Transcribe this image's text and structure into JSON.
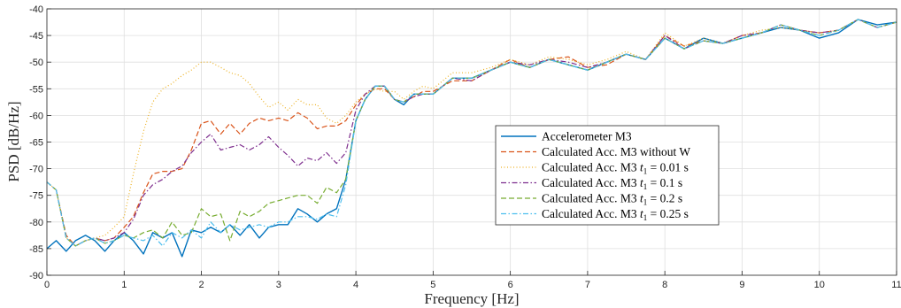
{
  "chart_data": {
    "type": "line",
    "xlabel": "Frequency [Hz]",
    "ylabel": "PSD [dB/Hz]",
    "xlim": [
      0,
      11
    ],
    "ylim": [
      -90,
      -40
    ],
    "xticks": [
      "0",
      "1",
      "2",
      "3",
      "4",
      "5",
      "6",
      "7",
      "8",
      "9",
      "10",
      "11"
    ],
    "yticks": [
      "-40",
      "-45",
      "-50",
      "-55",
      "-60",
      "-65",
      "-70",
      "-75",
      "-80",
      "-85",
      "-90"
    ],
    "grid": true,
    "legend_position": "center-right",
    "series": [
      {
        "name": "Accelerometer M3",
        "color": "#0072BD",
        "style": "solid",
        "x": [
          0,
          0.12,
          0.25,
          0.37,
          0.5,
          0.62,
          0.75,
          0.87,
          1.0,
          1.12,
          1.25,
          1.37,
          1.5,
          1.62,
          1.75,
          1.87,
          2.0,
          2.12,
          2.25,
          2.37,
          2.5,
          2.62,
          2.75,
          2.87,
          3.0,
          3.12,
          3.25,
          3.37,
          3.5,
          3.62,
          3.75,
          3.87,
          4.0,
          4.12,
          4.25,
          4.37,
          4.5,
          4.62,
          4.75,
          4.87,
          5.0,
          5.25,
          5.5,
          5.75,
          6.0,
          6.25,
          6.5,
          6.75,
          7.0,
          7.25,
          7.5,
          7.75,
          8.0,
          8.25,
          8.5,
          8.75,
          9.0,
          9.25,
          9.5,
          9.75,
          10.0,
          10.25,
          10.5,
          10.75,
          11.0
        ],
        "y": [
          -85,
          -83.5,
          -85.5,
          -83.5,
          -82.5,
          -83.5,
          -85.5,
          -83.5,
          -82,
          -83.5,
          -86,
          -82,
          -83,
          -82,
          -86.5,
          -81.5,
          -82,
          -81,
          -82,
          -80.5,
          -82.5,
          -80.5,
          -83,
          -81,
          -80.5,
          -80.5,
          -77.5,
          -78.5,
          -80,
          -78.5,
          -77.5,
          -72,
          -61,
          -57,
          -54.5,
          -54.5,
          -57,
          -58,
          -56,
          -56,
          -56,
          -53,
          -53,
          -51.5,
          -50,
          -51,
          -49.5,
          -50.5,
          -51.5,
          -50,
          -48.5,
          -49.5,
          -45.5,
          -47.5,
          -45.5,
          -46.5,
          -45.5,
          -44.5,
          -43.5,
          -44,
          -45.5,
          -44.5,
          -42,
          -43,
          -42.5
        ]
      },
      {
        "name": "Calculated Acc. M3 without W",
        "color": "#D95319",
        "style": "dashed",
        "x": [
          0,
          0.12,
          0.25,
          0.37,
          0.5,
          0.62,
          0.75,
          0.87,
          1.0,
          1.12,
          1.25,
          1.37,
          1.5,
          1.62,
          1.75,
          1.87,
          2.0,
          2.12,
          2.25,
          2.37,
          2.5,
          2.62,
          2.75,
          2.87,
          3.0,
          3.12,
          3.25,
          3.37,
          3.5,
          3.62,
          3.75,
          3.87,
          4.0,
          4.12,
          4.25,
          4.37,
          4.5,
          4.62,
          4.75,
          4.87,
          5.0,
          5.25,
          5.5,
          5.75,
          6.0,
          6.25,
          6.5,
          6.75,
          7.0,
          7.25,
          7.5,
          7.75,
          8.0,
          8.25,
          8.5,
          8.75,
          9.0,
          9.25,
          9.5,
          9.75,
          10.0,
          10.25,
          10.5,
          10.75,
          11.0
        ],
        "y": [
          -72.5,
          -74,
          -82.5,
          -84.5,
          -83.5,
          -83,
          -83.5,
          -83,
          -81,
          -79,
          -74.5,
          -71,
          -70.5,
          -70.5,
          -70,
          -66.5,
          -61.5,
          -61,
          -63.5,
          -61.5,
          -63.5,
          -61.5,
          -60.5,
          -61,
          -60.5,
          -61,
          -59.5,
          -60.5,
          -62.5,
          -62,
          -62,
          -61,
          -58,
          -56,
          -55,
          -55,
          -57,
          -57.5,
          -56.5,
          -55.5,
          -55.5,
          -53.5,
          -53.5,
          -51.5,
          -49.5,
          -51,
          -49.5,
          -49,
          -51,
          -50.5,
          -48.5,
          -49.5,
          -45,
          -47,
          -46,
          -46.5,
          -45,
          -44.5,
          -43,
          -44,
          -44.5,
          -44,
          -42,
          -43.5,
          -42.5
        ]
      },
      {
        "name": "Calculated Acc. M3 t1 = 0.01 s",
        "color": "#EDB120",
        "style": "dotted",
        "x": [
          0,
          0.12,
          0.25,
          0.37,
          0.5,
          0.62,
          0.75,
          0.87,
          1.0,
          1.12,
          1.25,
          1.37,
          1.5,
          1.62,
          1.75,
          1.87,
          2.0,
          2.12,
          2.25,
          2.37,
          2.5,
          2.62,
          2.75,
          2.87,
          3.0,
          3.12,
          3.25,
          3.37,
          3.5,
          3.62,
          3.75,
          3.87,
          4.0,
          4.12,
          4.25,
          4.37,
          4.5,
          4.62,
          4.75,
          4.87,
          5.0,
          5.25,
          5.5,
          5.75,
          6.0,
          6.25,
          6.5,
          6.75,
          7.0,
          7.25,
          7.5,
          7.75,
          8.0,
          8.25,
          8.5,
          8.75,
          9.0,
          9.25,
          9.5,
          9.75,
          10.0,
          10.25,
          10.5,
          10.75,
          11.0
        ],
        "y": [
          -72.5,
          -74,
          -83,
          -84.5,
          -83.5,
          -83,
          -82.5,
          -81,
          -79,
          -71,
          -63,
          -57.5,
          -55,
          -54,
          -52.5,
          -51.5,
          -50,
          -50,
          -51,
          -52,
          -52.5,
          -54,
          -56.5,
          -58.5,
          -57.5,
          -59,
          -57,
          -58,
          -58,
          -60.5,
          -61.5,
          -60,
          -57.5,
          -56,
          -55,
          -55.5,
          -55.5,
          -57,
          -55.5,
          -54.5,
          -55,
          -52,
          -52,
          -51,
          -49.5,
          -50.5,
          -49,
          -49.5,
          -50.5,
          -49.5,
          -48,
          -49.5,
          -44.5,
          -47,
          -45.5,
          -46.5,
          -45,
          -44,
          -43.5,
          -44,
          -44.5,
          -44,
          -42,
          -43.5,
          -42.5
        ]
      },
      {
        "name": "Calculated Acc. M3 t1 = 0.1 s",
        "color": "#7E2F8E",
        "style": "dashdot",
        "x": [
          0,
          0.12,
          0.25,
          0.37,
          0.5,
          0.62,
          0.75,
          0.87,
          1.0,
          1.12,
          1.25,
          1.37,
          1.5,
          1.62,
          1.75,
          1.87,
          2.0,
          2.12,
          2.25,
          2.37,
          2.5,
          2.62,
          2.75,
          2.87,
          3.0,
          3.12,
          3.25,
          3.37,
          3.5,
          3.62,
          3.75,
          3.87,
          4.0,
          4.12,
          4.25,
          4.37,
          4.5,
          4.62,
          4.75,
          4.87,
          5.0,
          5.25,
          5.5,
          5.75,
          6.0,
          6.25,
          6.5,
          6.75,
          7.0,
          7.25,
          7.5,
          7.75,
          8.0,
          8.25,
          8.5,
          8.75,
          9.0,
          9.25,
          9.5,
          9.75,
          10.0,
          10.25,
          10.5,
          10.75,
          11.0
        ],
        "y": [
          -72.5,
          -74,
          -83,
          -84.5,
          -83.5,
          -83,
          -83.5,
          -83,
          -82,
          -79.5,
          -75,
          -73,
          -72,
          -70.5,
          -69.5,
          -67,
          -65,
          -63.5,
          -66.5,
          -66,
          -65.5,
          -66.5,
          -65.5,
          -64,
          -66,
          -67.5,
          -69.5,
          -68,
          -68.5,
          -67,
          -69,
          -67,
          -59,
          -56,
          -54.5,
          -54.5,
          -57,
          -57.5,
          -56.5,
          -56,
          -56,
          -53,
          -53.5,
          -51.5,
          -50,
          -50.5,
          -49.5,
          -50,
          -51,
          -50,
          -48.5,
          -49.5,
          -45,
          -47.5,
          -46,
          -46.5,
          -45,
          -44.5,
          -43,
          -44,
          -44.5,
          -44,
          -42,
          -43.5,
          -42.5
        ]
      },
      {
        "name": "Calculated Acc. M3 t1 = 0.2 s",
        "color": "#77AC30",
        "style": "dashed",
        "x": [
          0,
          0.12,
          0.25,
          0.37,
          0.5,
          0.62,
          0.75,
          0.87,
          1.0,
          1.12,
          1.25,
          1.37,
          1.5,
          1.62,
          1.75,
          1.87,
          2.0,
          2.12,
          2.25,
          2.37,
          2.5,
          2.62,
          2.75,
          2.87,
          3.0,
          3.12,
          3.25,
          3.37,
          3.5,
          3.62,
          3.75,
          3.87,
          4.0,
          4.12,
          4.25,
          4.37,
          4.5,
          4.62,
          4.75,
          4.87,
          5.0,
          5.25,
          5.5,
          5.75,
          6.0,
          6.25,
          6.5,
          6.75,
          7.0,
          7.25,
          7.5,
          7.75,
          8.0,
          8.25,
          8.5,
          8.75,
          9.0,
          9.25,
          9.5,
          9.75,
          10.0,
          10.25,
          10.5,
          10.75,
          11.0
        ],
        "y": [
          -72.5,
          -74,
          -83,
          -84.5,
          -83.5,
          -83,
          -84,
          -83.5,
          -82.5,
          -83,
          -82,
          -81.5,
          -83,
          -80,
          -82.5,
          -82,
          -77.5,
          -79,
          -78.5,
          -83.5,
          -78,
          -79,
          -78,
          -76.5,
          -76,
          -75.5,
          -75,
          -75,
          -76.5,
          -73.5,
          -74.5,
          -72,
          -61,
          -57,
          -54.5,
          -54.5,
          -57,
          -57.5,
          -56,
          -56,
          -56,
          -53,
          -53,
          -51.5,
          -50,
          -51,
          -49.5,
          -50.5,
          -51.5,
          -50,
          -48.5,
          -49.5,
          -45.5,
          -47.5,
          -46,
          -46.5,
          -45.5,
          -44.5,
          -43,
          -44,
          -45,
          -44,
          -42,
          -43.5,
          -42.5
        ]
      },
      {
        "name": "Calculated Acc. M3 t1 = 0.25 s",
        "color": "#4DBEEE",
        "style": "dashdot",
        "x": [
          0,
          0.12,
          0.25,
          0.37,
          0.5,
          0.62,
          0.75,
          0.87,
          1.0,
          1.12,
          1.25,
          1.37,
          1.5,
          1.62,
          1.75,
          1.87,
          2.0,
          2.12,
          2.25,
          2.37,
          2.5,
          2.62,
          2.75,
          2.87,
          3.0,
          3.12,
          3.25,
          3.37,
          3.5,
          3.62,
          3.75,
          3.87,
          4.0,
          4.12,
          4.25,
          4.37,
          4.5,
          4.62,
          4.75,
          4.87,
          5.0,
          5.25,
          5.5,
          5.75,
          6.0,
          6.25,
          6.5,
          6.75,
          7.0,
          7.25,
          7.5,
          7.75,
          8.0,
          8.25,
          8.5,
          8.75,
          9.0,
          9.25,
          9.5,
          9.75,
          10.0,
          10.25,
          10.5,
          10.75,
          11.0
        ],
        "y": [
          -72.5,
          -74,
          -83,
          -84.5,
          -83.5,
          -83,
          -84,
          -83.5,
          -82.5,
          -83,
          -83.5,
          -82.5,
          -84.5,
          -82,
          -83,
          -81.5,
          -83,
          -80,
          -82,
          -80.5,
          -81.5,
          -81,
          -80.5,
          -81,
          -80,
          -80,
          -79,
          -79,
          -79.5,
          -78.5,
          -79,
          -73,
          -61,
          -57,
          -54.5,
          -54.5,
          -57,
          -57.5,
          -56,
          -56,
          -56,
          -53,
          -53,
          -51.5,
          -50,
          -51,
          -49.5,
          -50.5,
          -51.5,
          -50,
          -48.5,
          -49.5,
          -45.5,
          -47.5,
          -46,
          -46.5,
          -45.5,
          -44.5,
          -43,
          -44,
          -45,
          -44,
          -42,
          -43.5,
          -42.5
        ]
      }
    ]
  }
}
